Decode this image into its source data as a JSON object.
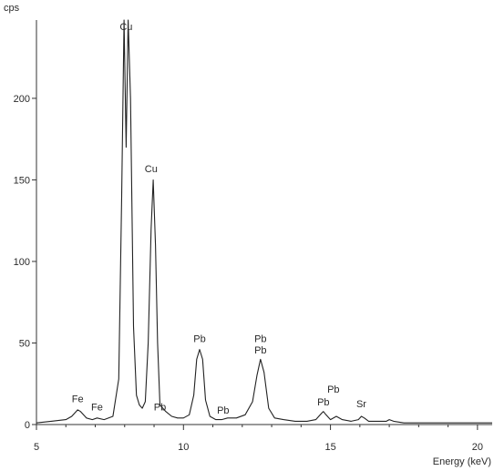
{
  "chart_data": {
    "type": "line",
    "title": "",
    "xlabel": "Energy (keV)",
    "ylabel": "cps",
    "xlim": [
      5,
      20.5
    ],
    "ylim": [
      0,
      248
    ],
    "xticks": [
      "5",
      "10",
      "15",
      "20"
    ],
    "yticks": [
      "0",
      "50",
      "100",
      "150",
      "200"
    ],
    "grid": false,
    "legend": "none",
    "series": [
      {
        "x": [
          5.0,
          5.5,
          6.0,
          6.2,
          6.4,
          6.5,
          6.7,
          6.9,
          7.06,
          7.3,
          7.6,
          7.8,
          7.9,
          7.98,
          8.05,
          8.12,
          8.2,
          8.3,
          8.4,
          8.5,
          8.6,
          8.7,
          8.8,
          8.9,
          8.97,
          9.05,
          9.12,
          9.2,
          9.4,
          9.6,
          9.8,
          10.0,
          10.2,
          10.35,
          10.45,
          10.55,
          10.65,
          10.75,
          10.9,
          11.1,
          11.3,
          11.5,
          11.8,
          12.1,
          12.35,
          12.5,
          12.62,
          12.74,
          12.9,
          13.1,
          13.4,
          13.8,
          14.2,
          14.5,
          14.7,
          14.76,
          14.85,
          15.0,
          15.2,
          15.4,
          15.7,
          15.95,
          16.05,
          16.15,
          16.3,
          16.6,
          16.9,
          17.0,
          17.15,
          17.5,
          18.0,
          19.0,
          20.0,
          20.5
        ],
        "y": [
          1,
          2,
          3,
          5,
          9,
          8,
          4,
          3,
          4,
          3,
          5,
          28,
          140,
          248,
          170,
          248,
          200,
          60,
          18,
          12,
          10,
          14,
          50,
          120,
          150,
          110,
          50,
          12,
          8,
          5,
          4,
          4,
          6,
          18,
          40,
          46,
          40,
          15,
          5,
          3,
          3,
          4,
          4,
          6,
          14,
          30,
          40,
          32,
          10,
          4,
          3,
          2,
          2,
          3,
          7,
          8,
          6,
          3,
          5,
          3,
          2,
          3,
          5,
          4,
          2,
          2,
          2,
          3,
          2,
          1,
          1,
          1,
          1,
          1
        ]
      }
    ],
    "annotations": [
      {
        "text": "Fe",
        "x": 6.4,
        "y": 12
      },
      {
        "text": "Fe",
        "x": 7.06,
        "y": 7
      },
      {
        "text": "Cu",
        "x": 8.05,
        "y": 248
      },
      {
        "text": "Cu",
        "x": 8.9,
        "y": 153
      },
      {
        "text": "Pb",
        "x": 9.2,
        "y": 7
      },
      {
        "text": "Pb",
        "x": 10.55,
        "y": 49
      },
      {
        "text": "Pb",
        "x": 11.35,
        "y": 5
      },
      {
        "text": "Pb",
        "x": 12.62,
        "y": 49
      },
      {
        "text": "Pb",
        "x": 12.62,
        "y": 42
      },
      {
        "text": "Pb",
        "x": 14.76,
        "y": 10
      },
      {
        "text": "Pb",
        "x": 15.1,
        "y": 18
      },
      {
        "text": "Sr",
        "x": 16.05,
        "y": 9
      }
    ]
  }
}
